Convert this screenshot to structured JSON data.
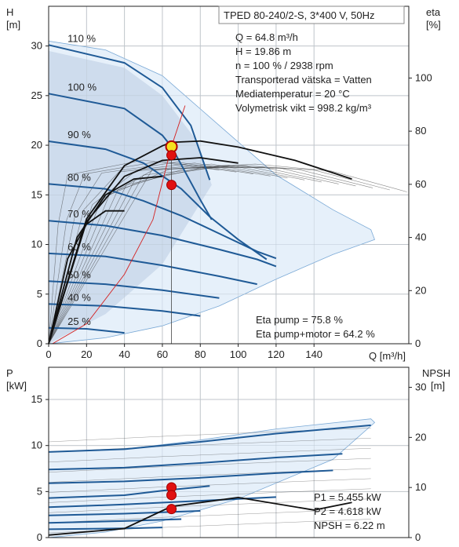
{
  "chart_data": [
    {
      "type": "line",
      "title": "TPED 80-240/2-S, 3*400 V, 50Hz",
      "xlabel": "Q [m³/h]",
      "ylabel_left_unit": "H",
      "ylabel_left_bracket": "[m]",
      "ylabel_right_unit": "eta",
      "ylabel_right_bracket": "[%]",
      "xlim": [
        0,
        190
      ],
      "ylim_left": [
        0,
        34
      ],
      "ylim_right": [
        0,
        127
      ],
      "x_ticks": [
        "0",
        "20",
        "40",
        "60",
        "80",
        "100",
        "120",
        "140"
      ],
      "y_ticks_left": [
        "0",
        "5",
        "10",
        "15",
        "20",
        "25",
        "30"
      ],
      "y_ticks_right": [
        "0",
        "20",
        "40",
        "60",
        "80",
        "100"
      ],
      "info_lines": [
        "Q = 64.8 m³/h",
        "H = 19.86 m",
        "n = 100 % / 2938 rpm",
        "Transporterad vätska = Vatten",
        "Mediatemperatur = 20 °C",
        "Volymetrisk vikt = 998.2 kg/m³"
      ],
      "eta_lines": [
        "Eta pump = 75.8 %",
        "Eta pump+motor = 64.2 %"
      ],
      "speed_labels": [
        "110 %",
        "100 %",
        "90 %",
        "80 %",
        "70 %",
        "60 %",
        "50 %",
        "40 %",
        "25 %"
      ],
      "speed_label_values": [
        110,
        100,
        90,
        80,
        70,
        60,
        50,
        40,
        25
      ],
      "qh_curves": [
        {
          "speed": 110,
          "points": [
            [
              0,
              30.1
            ],
            [
              40,
              28.3
            ],
            [
              60,
              25.8
            ],
            [
              75,
              22.0
            ],
            [
              85,
              16.5
            ]
          ]
        },
        {
          "speed": 100,
          "points": [
            [
              0,
              25.2
            ],
            [
              40,
              23.7
            ],
            [
              60,
              21.0
            ],
            [
              64.8,
              19.86
            ],
            [
              80,
              14.5
            ],
            [
              86,
              12.5
            ]
          ]
        },
        {
          "speed": 90,
          "points": [
            [
              0,
              20.4
            ],
            [
              30,
              19.6
            ],
            [
              50,
              18.2
            ],
            [
              70,
              15.6
            ],
            [
              85,
              12.8
            ],
            [
              100,
              10.5
            ],
            [
              115,
              8.5
            ]
          ]
        },
        {
          "speed": 80,
          "points": [
            [
              0,
              16.1
            ],
            [
              30,
              15.6
            ],
            [
              50,
              14.4
            ],
            [
              70,
              12.9
            ],
            [
              90,
              11.1
            ],
            [
              110,
              9.3
            ],
            [
              120,
              8.6
            ]
          ]
        },
        {
          "speed": 70,
          "points": [
            [
              0,
              12.4
            ],
            [
              30,
              11.9
            ],
            [
              60,
              10.9
            ],
            [
              90,
              9.5
            ],
            [
              110,
              8.5
            ],
            [
              120,
              7.8
            ]
          ]
        },
        {
          "speed": 60,
          "points": [
            [
              0,
              9.1
            ],
            [
              30,
              8.8
            ],
            [
              60,
              7.9
            ],
            [
              90,
              6.8
            ],
            [
              110,
              6.0
            ]
          ]
        },
        {
          "speed": 50,
          "points": [
            [
              0,
              6.3
            ],
            [
              30,
              6.0
            ],
            [
              60,
              5.4
            ],
            [
              90,
              4.6
            ]
          ]
        },
        {
          "speed": 40,
          "points": [
            [
              0,
              4.0
            ],
            [
              30,
              3.8
            ],
            [
              60,
              3.3
            ],
            [
              80,
              2.8
            ]
          ]
        },
        {
          "speed": 25,
          "points": [
            [
              0,
              1.6
            ],
            [
              20,
              1.5
            ],
            [
              40,
              1.1
            ]
          ]
        }
      ],
      "eta_curves": [
        {
          "name": "eta-100",
          "points": [
            [
              0,
              0
            ],
            [
              20,
              47
            ],
            [
              40,
              67
            ],
            [
              60,
              74.5
            ],
            [
              64.8,
              75.8
            ],
            [
              80,
              76.3
            ],
            [
              100,
              74
            ],
            [
              130,
              69
            ],
            [
              160,
              62
            ]
          ]
        },
        {
          "name": "eta-80",
          "points": [
            [
              0,
              0
            ],
            [
              20,
              46
            ],
            [
              40,
              63
            ],
            [
              60,
              69
            ],
            [
              80,
              70
            ],
            [
              100,
              68
            ]
          ]
        },
        {
          "name": "eta-60",
          "points": [
            [
              0,
              0
            ],
            [
              15,
              40
            ],
            [
              30,
              56
            ],
            [
              45,
              62
            ],
            [
              60,
              63
            ]
          ]
        },
        {
          "name": "eta-40",
          "points": [
            [
              0,
              0
            ],
            [
              10,
              32
            ],
            [
              20,
              45
            ],
            [
              30,
              50
            ],
            [
              40,
              50
            ]
          ]
        }
      ],
      "operating_points": [
        {
          "x": 64.8,
          "y": 19.86,
          "style": "ring"
        },
        {
          "x": 64.8,
          "y": 19.0,
          "style": "dot"
        },
        {
          "x": 64.8,
          "y": 16.0,
          "style": "dot"
        }
      ],
      "grid": true
    },
    {
      "type": "line",
      "xlabel": "",
      "ylabel_left_unit": "P",
      "ylabel_left_bracket": "[kW]",
      "ylabel_right_unit": "NPSH",
      "ylabel_right_bracket": "[m]",
      "xlim": [
        0,
        190
      ],
      "ylim_left": [
        0,
        18.5
      ],
      "ylim_right": [
        0,
        34
      ],
      "y_ticks_left": [
        "0",
        "5",
        "10",
        "15"
      ],
      "y_ticks_right": [
        "0",
        "10",
        "20",
        "30"
      ],
      "info_lines": [
        "P1 = 5.455 kW",
        "P2 = 4.618 kW",
        "NPSH = 6.22 m"
      ],
      "power_curves": [
        {
          "name": "p-110",
          "points": [
            [
              0,
              9.3
            ],
            [
              40,
              9.6
            ],
            [
              80,
              10.4
            ],
            [
              120,
              11.3
            ],
            [
              170,
              12.2
            ]
          ]
        },
        {
          "name": "p-100",
          "points": [
            [
              0,
              7.4
            ],
            [
              40,
              7.6
            ],
            [
              80,
              8.1
            ],
            [
              120,
              8.7
            ],
            [
              155,
              9.1
            ]
          ]
        },
        {
          "name": "p-90",
          "points": [
            [
              0,
              5.9
            ],
            [
              40,
              6.1
            ],
            [
              80,
              6.5
            ],
            [
              120,
              7.0
            ],
            [
              150,
              7.3
            ]
          ]
        },
        {
          "name": "p-80",
          "points": [
            [
              0,
              4.3
            ],
            [
              40,
              4.6
            ],
            [
              60,
              5.1
            ],
            [
              85,
              5.6
            ]
          ]
        },
        {
          "name": "p-70",
          "points": [
            [
              0,
              3.3
            ],
            [
              40,
              3.6
            ],
            [
              80,
              4.0
            ],
            [
              120,
              4.4
            ]
          ]
        },
        {
          "name": "p-60",
          "points": [
            [
              0,
              2.4
            ],
            [
              40,
              2.6
            ],
            [
              80,
              2.9
            ]
          ]
        },
        {
          "name": "p-50",
          "points": [
            [
              0,
              1.6
            ],
            [
              40,
              1.8
            ],
            [
              70,
              2.0
            ]
          ]
        },
        {
          "name": "p-40",
          "points": [
            [
              0,
              0.9
            ],
            [
              40,
              1.0
            ],
            [
              60,
              1.1
            ]
          ]
        }
      ],
      "npsh_curve": {
        "name": "npsh",
        "points": [
          [
            0,
            0.5
          ],
          [
            40,
            1.8
          ],
          [
            64.8,
            6.22
          ],
          [
            100,
            8.0
          ],
          [
            140,
            5.5
          ],
          [
            160,
            7.0
          ]
        ]
      },
      "operating_points": [
        {
          "x": 64.8,
          "y": 5.455
        },
        {
          "x": 64.8,
          "y": 4.618
        },
        {
          "x": 64.8,
          "y": 3.1
        }
      ],
      "grid": true
    }
  ]
}
